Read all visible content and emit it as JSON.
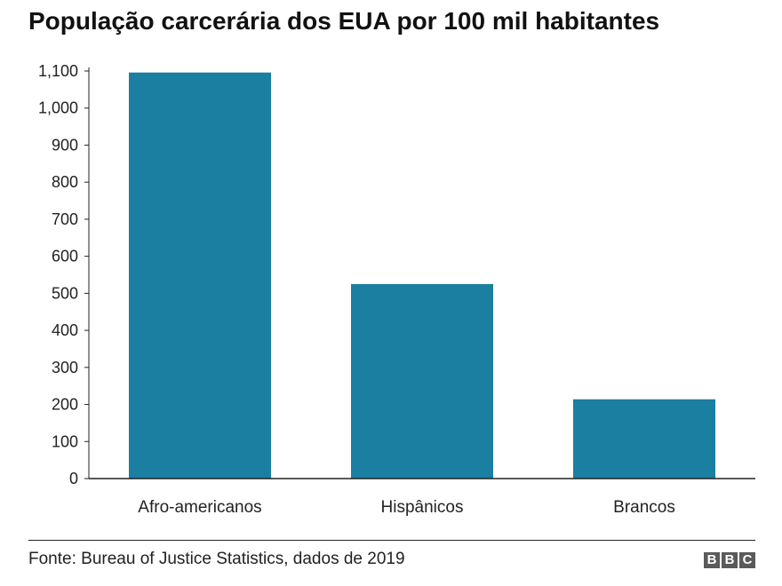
{
  "title": "População carcerária dos EUA por 100 mil habitantes",
  "source": "Fonte: Bureau of Justice Statistics, dados de 2019",
  "logo": [
    "B",
    "B",
    "C"
  ],
  "colors": {
    "bar": "#1a7fa0",
    "axis": "#222222",
    "text": "#222222"
  },
  "chart_data": {
    "type": "bar",
    "categories": [
      "Afro-americanos",
      "Hispânicos",
      "Brancos"
    ],
    "values": [
      1096,
      525,
      214
    ],
    "ylim": [
      0,
      1100
    ],
    "yticks": [
      0,
      100,
      200,
      300,
      400,
      500,
      600,
      700,
      800,
      900,
      1000,
      1100
    ],
    "ytick_labels": [
      "0",
      "100",
      "200",
      "300",
      "400",
      "500",
      "600",
      "700",
      "800",
      "900",
      "1,000",
      "1,100"
    ],
    "grid": false
  }
}
